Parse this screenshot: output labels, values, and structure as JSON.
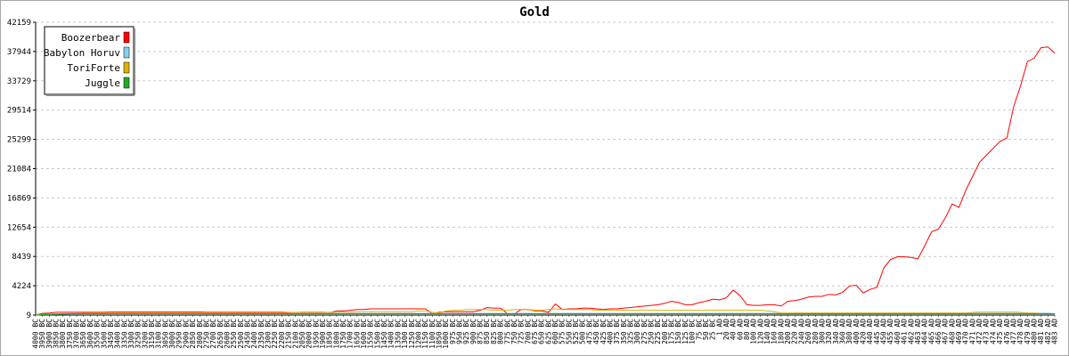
{
  "chart_data": {
    "type": "line",
    "title": "Gold",
    "xlabel": "",
    "ylabel": "",
    "ylim": [
      9,
      42159
    ],
    "yticks": [
      "9",
      "4224",
      "8439",
      "12654",
      "16869",
      "21084",
      "25299",
      "29514",
      "33729",
      "37944",
      "42159"
    ],
    "grid": "horizontal dashed",
    "legend_position": "top-left",
    "x": [
      "4000 BC",
      "3950 BC",
      "3900 BC",
      "3850 BC",
      "3800 BC",
      "3750 BC",
      "3700 BC",
      "3650 BC",
      "3600 BC",
      "3550 BC",
      "3500 BC",
      "3450 BC",
      "3400 BC",
      "3350 BC",
      "3300 BC",
      "3250 BC",
      "3200 BC",
      "3150 BC",
      "3100 BC",
      "3050 BC",
      "3000 BC",
      "2950 BC",
      "2900 BC",
      "2850 BC",
      "2800 BC",
      "2750 BC",
      "2700 BC",
      "2650 BC",
      "2600 BC",
      "2550 BC",
      "2500 BC",
      "2450 BC",
      "2400 BC",
      "2350 BC",
      "2300 BC",
      "2250 BC",
      "2200 BC",
      "2150 BC",
      "2100 BC",
      "2050 BC",
      "2000 BC",
      "1950 BC",
      "1900 BC",
      "1850 BC",
      "1800 BC",
      "1750 BC",
      "1700 BC",
      "1650 BC",
      "1600 BC",
      "1550 BC",
      "1500 BC",
      "1450 BC",
      "1400 BC",
      "1350 BC",
      "1300 BC",
      "1250 BC",
      "1200 BC",
      "1150 BC",
      "1100 BC",
      "1050 BC",
      "1000 BC",
      "975 BC",
      "950 BC",
      "925 BC",
      "900 BC",
      "875 BC",
      "850 BC",
      "825 BC",
      "800 BC",
      "775 BC",
      "750 BC",
      "725 BC",
      "700 BC",
      "675 BC",
      "650 BC",
      "625 BC",
      "600 BC",
      "575 BC",
      "550 BC",
      "525 BC",
      "500 BC",
      "475 BC",
      "450 BC",
      "425 BC",
      "400 BC",
      "375 BC",
      "350 BC",
      "325 BC",
      "300 BC",
      "275 BC",
      "250 BC",
      "225 BC",
      "200 BC",
      "175 BC",
      "150 BC",
      "125 BC",
      "100 BC",
      "75 BC",
      "50 BC",
      "25 BC",
      "1 AD",
      "20 AD",
      "40 AD",
      "60 AD",
      "80 AD",
      "100 AD",
      "120 AD",
      "140 AD",
      "160 AD",
      "180 AD",
      "200 AD",
      "220 AD",
      "240 AD",
      "260 AD",
      "280 AD",
      "300 AD",
      "320 AD",
      "340 AD",
      "360 AD",
      "380 AD",
      "400 AD",
      "420 AD",
      "440 AD",
      "445 AD",
      "450 AD",
      "455 AD",
      "460 AD",
      "461 AD",
      "462 AD",
      "463 AD",
      "464 AD",
      "465 AD",
      "466 AD",
      "467 AD",
      "468 AD",
      "469 AD",
      "470 AD",
      "471 AD",
      "472 AD",
      "473 AD",
      "474 AD",
      "475 AD",
      "476 AD",
      "477 AD",
      "478 AD",
      "479 AD",
      "480 AD",
      "481 AD",
      "482 AD",
      "483 AD"
    ],
    "series": [
      {
        "name": "Boozerbear",
        "color": "#ff0000",
        "values": [
          9,
          250,
          300,
          400,
          400,
          400,
          400,
          400,
          400,
          400,
          400,
          450,
          450,
          450,
          450,
          450,
          450,
          450,
          450,
          450,
          450,
          450,
          450,
          450,
          450,
          400,
          400,
          400,
          400,
          400,
          400,
          400,
          400,
          400,
          400,
          400,
          400,
          350,
          350,
          400,
          400,
          400,
          400,
          350,
          600,
          600,
          700,
          800,
          800,
          900,
          900,
          900,
          900,
          900,
          900,
          900,
          900,
          900,
          200,
          400,
          500,
          500,
          500,
          500,
          500,
          700,
          1100,
          1000,
          1000,
          200,
          200,
          800,
          800,
          600,
          600,
          400,
          1600,
          800,
          900,
          900,
          1000,
          1000,
          900,
          800,
          900,
          900,
          1000,
          1100,
          1200,
          1300,
          1400,
          1500,
          1700,
          2000,
          1800,
          1500,
          1500,
          1800,
          2000,
          2300,
          2200,
          2500,
          3600,
          2800,
          1500,
          1400,
          1400,
          1500,
          1500,
          1300,
          2000,
          2100,
          2300,
          2600,
          2700,
          2700,
          3000,
          2900,
          3300,
          4200,
          4300,
          3200,
          3700,
          4000,
          6800,
          8000,
          8400,
          8400,
          8300,
          8100,
          10000,
          12000,
          12400,
          14000,
          16000,
          15500,
          18000,
          20000,
          22000,
          23000,
          24000,
          25000,
          25500,
          30000,
          33000,
          36500,
          37000,
          38500,
          38600,
          37700
        ]
      },
      {
        "name": "Babylon Horuv",
        "color": "#87ceeb",
        "values": [
          9,
          80,
          100,
          120,
          140,
          160,
          180,
          200,
          220,
          240,
          260,
          260,
          260,
          260,
          260,
          260,
          260,
          260,
          260,
          260,
          260,
          260,
          260,
          260,
          260,
          260,
          260,
          260,
          260,
          260,
          260,
          260,
          260,
          260,
          260,
          260,
          260,
          260,
          260,
          260,
          260,
          260,
          260,
          260,
          260,
          260,
          260,
          260,
          260,
          260,
          260,
          260,
          260,
          260,
          260,
          260,
          260,
          260,
          260,
          260,
          260,
          260,
          260,
          260,
          260,
          260,
          260,
          260,
          260,
          260,
          260,
          260,
          260,
          260,
          260,
          260,
          260,
          260,
          260,
          260,
          260,
          260,
          260,
          260,
          260,
          260,
          260,
          260,
          260,
          260,
          260,
          260,
          260,
          260,
          260,
          260,
          260,
          260,
          260,
          260,
          260,
          260,
          260,
          260,
          260,
          260,
          260,
          260,
          260,
          260,
          260,
          300,
          300,
          300,
          300,
          300,
          300,
          300,
          300,
          300,
          300,
          300,
          300,
          300,
          300,
          300,
          300,
          300,
          300,
          300,
          300,
          300,
          300,
          300,
          300,
          300,
          300,
          400,
          500,
          500,
          500,
          500,
          500,
          500,
          400,
          300,
          300,
          300,
          300,
          200
        ]
      },
      {
        "name": "ToriForte",
        "color": "#e0b000",
        "values": [
          9,
          120,
          150,
          180,
          200,
          220,
          240,
          260,
          280,
          280,
          300,
          300,
          300,
          300,
          300,
          300,
          300,
          300,
          300,
          300,
          300,
          300,
          300,
          300,
          300,
          300,
          300,
          300,
          300,
          300,
          300,
          300,
          300,
          300,
          300,
          300,
          300,
          300,
          350,
          350,
          350,
          350,
          350,
          400,
          400,
          450,
          450,
          500,
          500,
          500,
          500,
          500,
          500,
          500,
          500,
          500,
          600,
          600,
          400,
          300,
          600,
          700,
          700,
          800,
          800,
          800,
          800,
          700,
          700,
          700,
          800,
          800,
          800,
          700,
          700,
          800,
          900,
          800,
          800,
          800,
          800,
          800,
          700,
          700,
          700,
          700,
          700,
          700,
          700,
          700,
          700,
          700,
          700,
          700,
          700,
          700,
          700,
          700,
          700,
          700,
          700,
          700,
          700,
          700,
          700,
          700,
          700,
          600,
          500,
          300,
          300,
          300,
          300,
          300,
          300,
          300,
          300,
          300,
          300,
          300,
          300,
          300,
          300,
          300,
          300,
          300,
          300,
          300,
          300,
          300,
          300,
          300,
          300,
          300,
          300,
          300,
          300,
          300,
          300,
          300,
          300,
          300,
          300,
          300,
          300,
          300,
          300,
          200,
          200,
          200
        ]
      },
      {
        "name": "Juggle",
        "color": "#22aa22",
        "values": [
          9,
          100,
          120,
          150,
          180,
          200,
          200,
          200,
          200,
          200,
          200,
          200,
          200,
          200,
          200,
          200,
          200,
          200,
          200,
          200,
          200,
          200,
          200,
          200,
          200,
          200,
          200,
          200,
          200,
          200,
          200,
          200,
          200,
          200,
          200,
          200,
          200,
          200,
          200,
          200,
          200,
          200,
          200,
          200,
          200,
          200,
          200,
          200,
          200,
          200,
          200,
          200,
          200,
          200,
          200,
          200,
          200,
          200,
          200,
          200,
          200,
          200,
          200,
          200,
          200,
          200,
          200,
          200,
          200,
          200,
          200,
          200,
          200,
          200,
          200,
          200,
          200,
          200,
          200,
          200,
          200,
          200,
          200,
          200,
          200,
          200,
          200,
          200,
          200,
          200,
          200,
          200,
          200,
          200,
          200,
          200,
          200,
          200,
          200,
          200,
          200,
          200,
          200,
          200,
          200,
          200,
          200,
          200,
          200,
          200,
          200,
          200,
          200,
          200,
          200,
          200,
          200,
          200,
          200,
          200,
          200,
          200,
          200,
          200,
          200,
          200,
          200,
          200,
          200,
          200,
          200,
          200,
          200,
          200,
          200,
          200,
          200,
          200,
          200,
          200,
          200,
          200,
          200,
          200,
          200,
          200,
          200,
          200,
          200,
          200
        ]
      }
    ]
  }
}
